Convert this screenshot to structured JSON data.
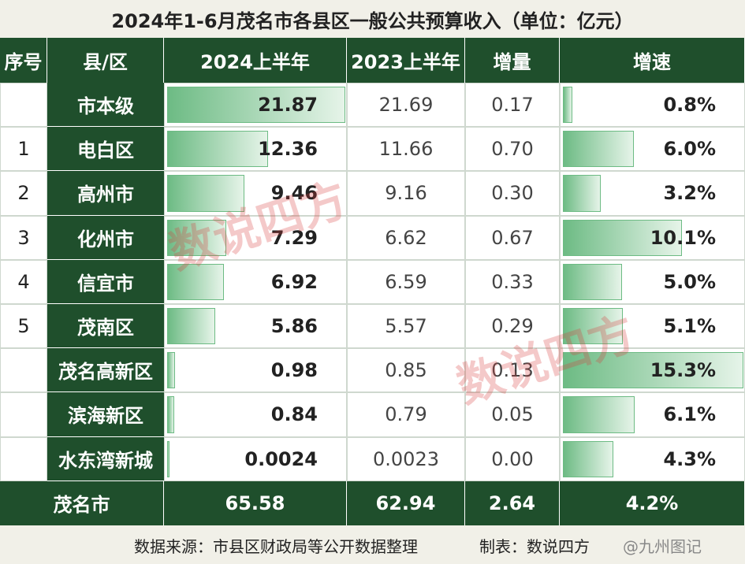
{
  "title": "2024年1-6月茂名市各县区一般公共预算收入（单位：亿元）",
  "table": {
    "headers": [
      "序号",
      "县/区",
      "2024上半年",
      "2023上半年",
      "增量",
      "增速"
    ],
    "rows": [
      [
        null,
        "市本级",
        "21.87",
        "21.69",
        "0.17",
        "0.8%"
      ],
      [
        "1",
        "电白区",
        "12.36",
        "11.66",
        "0.70",
        "6.0%"
      ],
      [
        "2",
        "高州市",
        "9.46",
        "9.16",
        "0.30",
        "3.2%"
      ],
      [
        "3",
        "化州市",
        "7.29",
        "6.62",
        "0.67",
        "10.1%"
      ],
      [
        "4",
        "信宜市",
        "6.92",
        "6.59",
        "0.33",
        "5.0%"
      ],
      [
        "5",
        "茂南区",
        "5.86",
        "5.57",
        "0.29",
        "5.1%"
      ],
      [
        null,
        "茂名高新区",
        "0.98",
        "0.85",
        "0.13",
        "15.3%"
      ],
      [
        null,
        "滨海新区",
        "0.84",
        "0.79",
        "0.05",
        "6.1%"
      ],
      [
        null,
        "水东湾新城",
        "0.0024",
        "0.0023",
        "0.00",
        "4.3%"
      ]
    ],
    "total": [
      "茂名市",
      "65.58",
      "62.94",
      "2.64",
      "4.2%"
    ]
  },
  "footer": {
    "source": "数据来源：市县区财政局等公开数据整理",
    "maker": "制表：数说四方",
    "credit": "@九州图记"
  },
  "watermarks": [
    "数说四方",
    "数说四方"
  ]
}
